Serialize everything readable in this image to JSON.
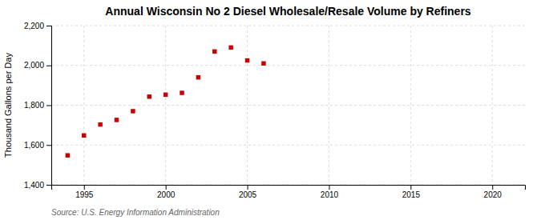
{
  "chart_data": {
    "type": "scatter",
    "title": "Annual Wisconsin No 2 Diesel Wholesale/Resale Volume by Refiners",
    "ylabel": "Thousand Gallons per Day",
    "source": "Source: U.S. Energy Information Administration",
    "x": [
      1994,
      1995,
      1996,
      1997,
      1998,
      1999,
      2000,
      2001,
      2002,
      2003,
      2004,
      2005,
      2006
    ],
    "values": [
      1548,
      1648,
      1703,
      1726,
      1770,
      1843,
      1853,
      1862,
      1940,
      2070,
      2090,
      2025,
      2010
    ],
    "color": "#cc0000",
    "marker": "square",
    "xlim": [
      1993,
      2022
    ],
    "xticks": [
      1995,
      2000,
      2005,
      2010,
      2015,
      2020
    ],
    "ylim": [
      1400,
      2200
    ],
    "yticks": [
      {
        "value": 1400,
        "label": "1,400"
      },
      {
        "value": 1600,
        "label": "1,600"
      },
      {
        "value": 1800,
        "label": "1,800"
      },
      {
        "value": 2000,
        "label": "2,000"
      },
      {
        "value": 2200,
        "label": "2,200"
      }
    ],
    "grid": true
  }
}
